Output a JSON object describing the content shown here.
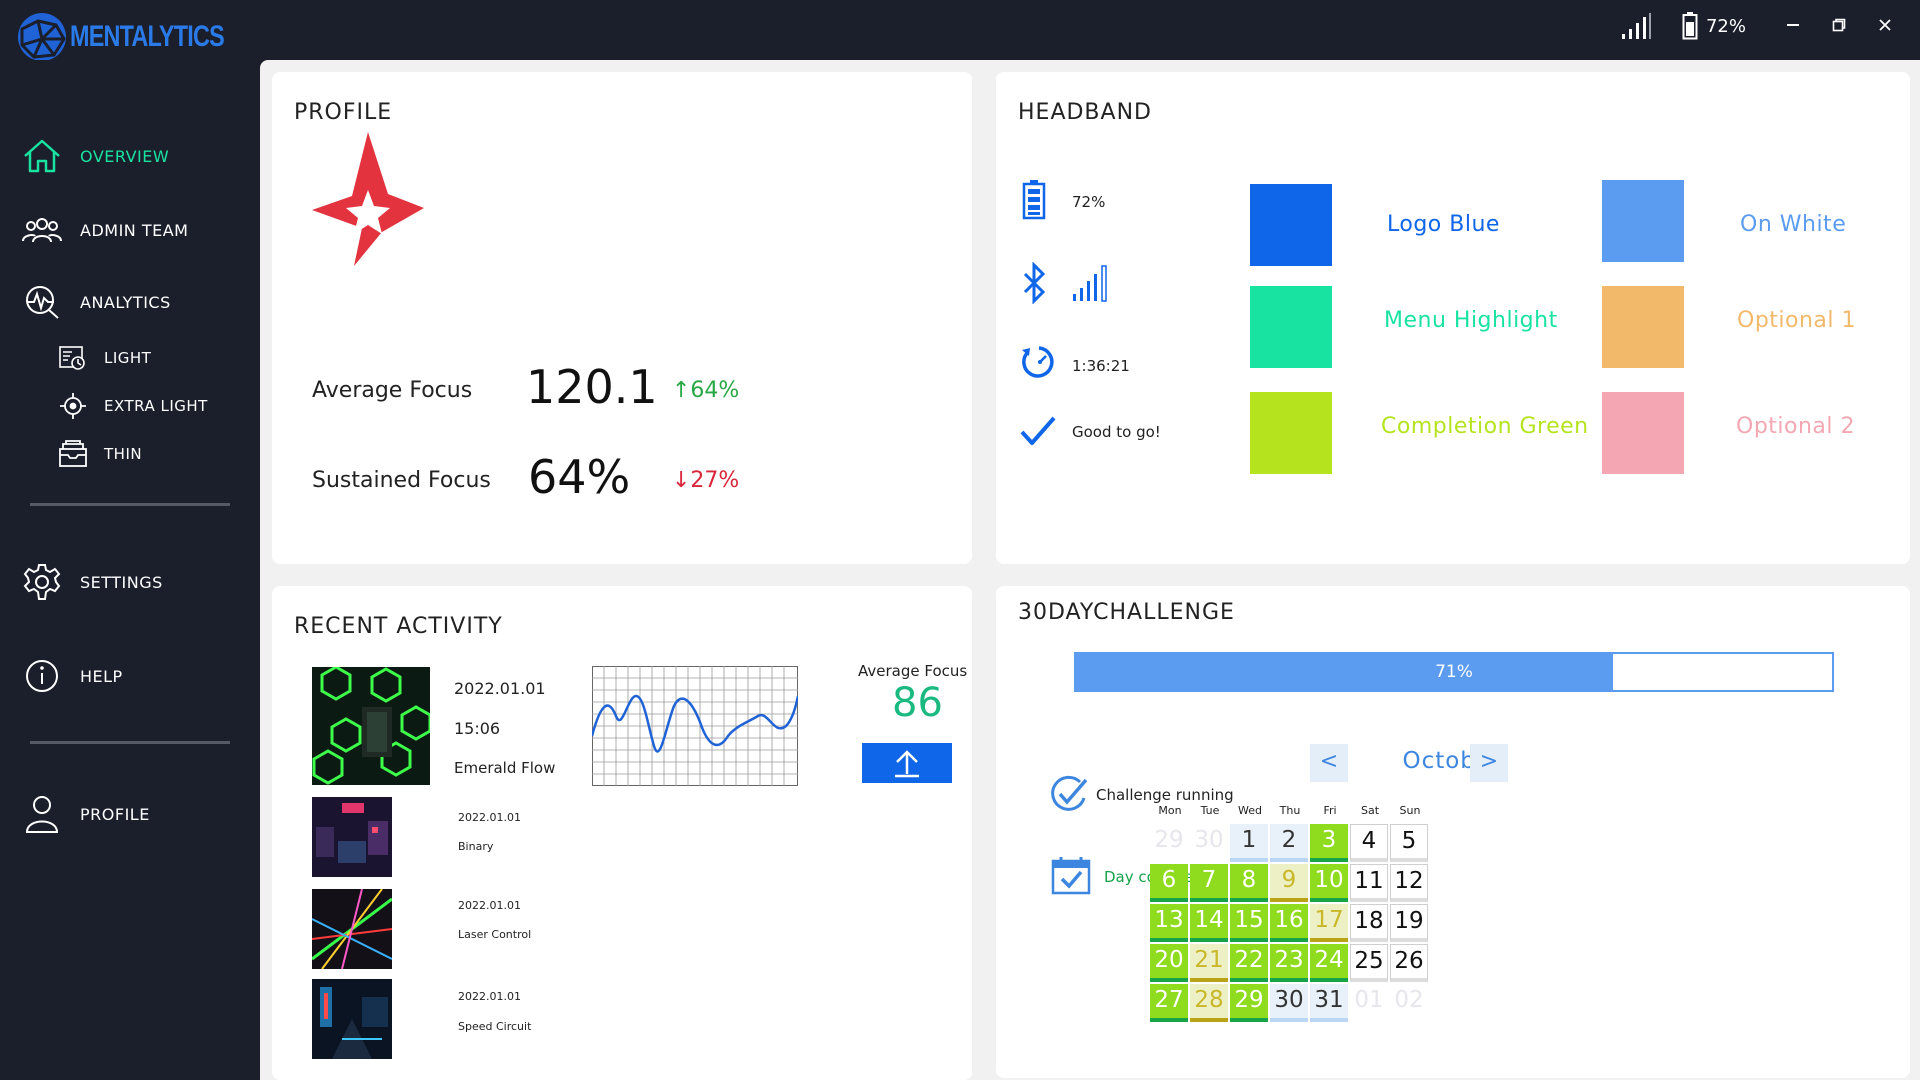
{
  "app": {
    "name": "MENTALYTICS",
    "battery": "72%"
  },
  "colors": {
    "bg_dark": "#1b1e2b",
    "accent_blue": "#0f66e8",
    "menu_highlight": "#19e3a1",
    "completion_green": "#b5e41f",
    "on_white": "#5b9cf0",
    "optional1": "#f2b96b",
    "optional2": "#f4a7b2",
    "up": "#27a844",
    "down": "#d9263a"
  },
  "sidebar": {
    "items": [
      {
        "label": "OVERVIEW",
        "icon": "home-icon",
        "active": true
      },
      {
        "label": "ADMIN TEAM",
        "icon": "team-icon"
      },
      {
        "label": "ANALYTICS",
        "icon": "analytics-icon"
      },
      {
        "label": "LIGHT",
        "icon": "light-icon"
      },
      {
        "label": "EXTRA LIGHT",
        "icon": "target-icon"
      },
      {
        "label": "THIN",
        "icon": "tray-icon"
      },
      {
        "label": "SETTINGS",
        "icon": "gear-icon"
      },
      {
        "label": "HELP",
        "icon": "info-icon"
      },
      {
        "label": "PROFILE",
        "icon": "user-icon"
      }
    ]
  },
  "profile": {
    "title": "PROFILE",
    "avg_focus_label": "Average Focus",
    "avg_focus_value": "120.1",
    "avg_focus_change": "↑64%",
    "sustained_label": "Sustained Focus",
    "sustained_value": "64%",
    "sustained_change": "↓27%"
  },
  "headband": {
    "title": "HEADBAND",
    "battery": "72%",
    "time": "1:36:21",
    "status": "Good to go!",
    "swatches": [
      {
        "label": "Logo Blue",
        "color": "#0f66e8",
        "text_color": "#0f66e8"
      },
      {
        "label": "On White",
        "color": "#5b9cf0",
        "text_color": "#5b9cf0"
      },
      {
        "label": "Menu Highlight",
        "color": "#19e3a1",
        "text_color": "#19e3a1"
      },
      {
        "label": "Optional 1",
        "color": "#f2b96b",
        "text_color": "#f2b96b"
      },
      {
        "label": "Completion Green",
        "color": "#b5e41f",
        "text_color": "#b5e41f"
      },
      {
        "label": "Optional 2",
        "color": "#f4a7b2",
        "text_color": "#f4a7b2"
      }
    ]
  },
  "recent": {
    "title": "RECENT ACTIVITY",
    "featured": {
      "date": "2022.01.01",
      "time": "15:06",
      "name": "Emerald Flow"
    },
    "avg_label": "Average Focus",
    "avg_value": "86",
    "items": [
      {
        "date": "2022.01.01",
        "name": "Binary"
      },
      {
        "date": "2022.01.01",
        "name": "Laser Control"
      },
      {
        "date": "2022.01.01",
        "name": "Speed Circuit"
      }
    ]
  },
  "challenge": {
    "title": "30DAYCHALLENGE",
    "progress": 71,
    "progress_label": "71%",
    "running_label": "Challenge running",
    "completed_label": "Day completed!",
    "month": "October",
    "prev": "<",
    "next": ">",
    "dows": [
      "Mon",
      "Tue",
      "Wed",
      "Thu",
      "Fri",
      "Sat",
      "Sun"
    ],
    "days": [
      {
        "d": "29",
        "s": "out"
      },
      {
        "d": "30",
        "s": "out"
      },
      {
        "d": "1",
        "s": "blue"
      },
      {
        "d": "2",
        "s": "blue"
      },
      {
        "d": "3",
        "s": "green"
      },
      {
        "d": "4",
        "s": "plain"
      },
      {
        "d": "5",
        "s": "plain"
      },
      {
        "d": "6",
        "s": "green"
      },
      {
        "d": "7",
        "s": "green"
      },
      {
        "d": "8",
        "s": "green"
      },
      {
        "d": "9",
        "s": "yellow"
      },
      {
        "d": "10",
        "s": "green"
      },
      {
        "d": "11",
        "s": "plain"
      },
      {
        "d": "12",
        "s": "plain"
      },
      {
        "d": "13",
        "s": "green"
      },
      {
        "d": "14",
        "s": "green"
      },
      {
        "d": "15",
        "s": "green"
      },
      {
        "d": "16",
        "s": "green"
      },
      {
        "d": "17",
        "s": "yellow"
      },
      {
        "d": "18",
        "s": "plain"
      },
      {
        "d": "19",
        "s": "plain"
      },
      {
        "d": "20",
        "s": "green"
      },
      {
        "d": "21",
        "s": "yellow"
      },
      {
        "d": "22",
        "s": "green"
      },
      {
        "d": "23",
        "s": "green"
      },
      {
        "d": "24",
        "s": "green"
      },
      {
        "d": "25",
        "s": "plain"
      },
      {
        "d": "26",
        "s": "plain"
      },
      {
        "d": "27",
        "s": "green"
      },
      {
        "d": "28",
        "s": "yellow"
      },
      {
        "d": "29",
        "s": "green"
      },
      {
        "d": "30",
        "s": "blue"
      },
      {
        "d": "31",
        "s": "blue"
      },
      {
        "d": "01",
        "s": "out"
      },
      {
        "d": "02",
        "s": "out"
      }
    ]
  }
}
